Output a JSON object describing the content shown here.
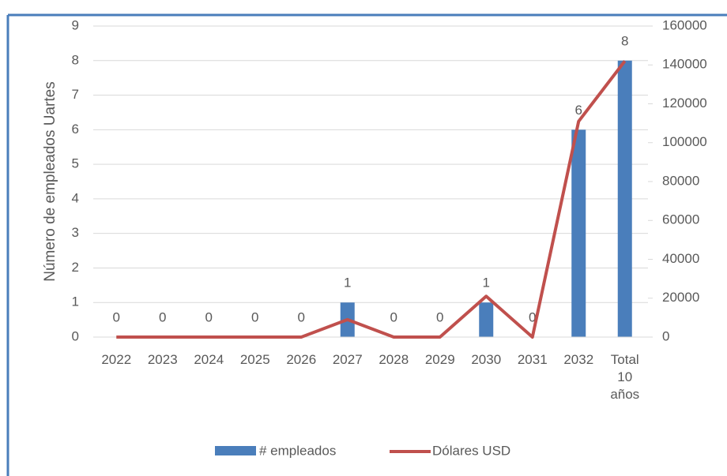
{
  "chart_data": {
    "type": "bar",
    "y_label": "Número de empleados Uartes",
    "categories": [
      "2022",
      "2023",
      "2024",
      "2025",
      "2026",
      "2027",
      "2028",
      "2029",
      "2030",
      "2031",
      "2032",
      "Total 10 años"
    ],
    "series": [
      {
        "name": "# empleados",
        "color": "#4a7ebb",
        "values": [
          0,
          0,
          0,
          0,
          0,
          1,
          0,
          0,
          1,
          0,
          6,
          8
        ]
      },
      {
        "name": "Dólares USD",
        "color": "#c0504d",
        "axis": "y2",
        "type": "line",
        "values": [
          0,
          0,
          0,
          0,
          0,
          9000,
          0,
          0,
          21000,
          0,
          111000,
          142000
        ]
      }
    ],
    "ylim": [
      0,
      9
    ],
    "yticks": [
      0,
      1,
      2,
      3,
      4,
      5,
      6,
      7,
      8,
      9
    ],
    "y2lim": [
      0,
      160000
    ],
    "y2ticks": [
      0,
      20000,
      40000,
      60000,
      80000,
      100000,
      120000,
      140000,
      160000
    ],
    "grid": true,
    "legend": "bottom"
  }
}
